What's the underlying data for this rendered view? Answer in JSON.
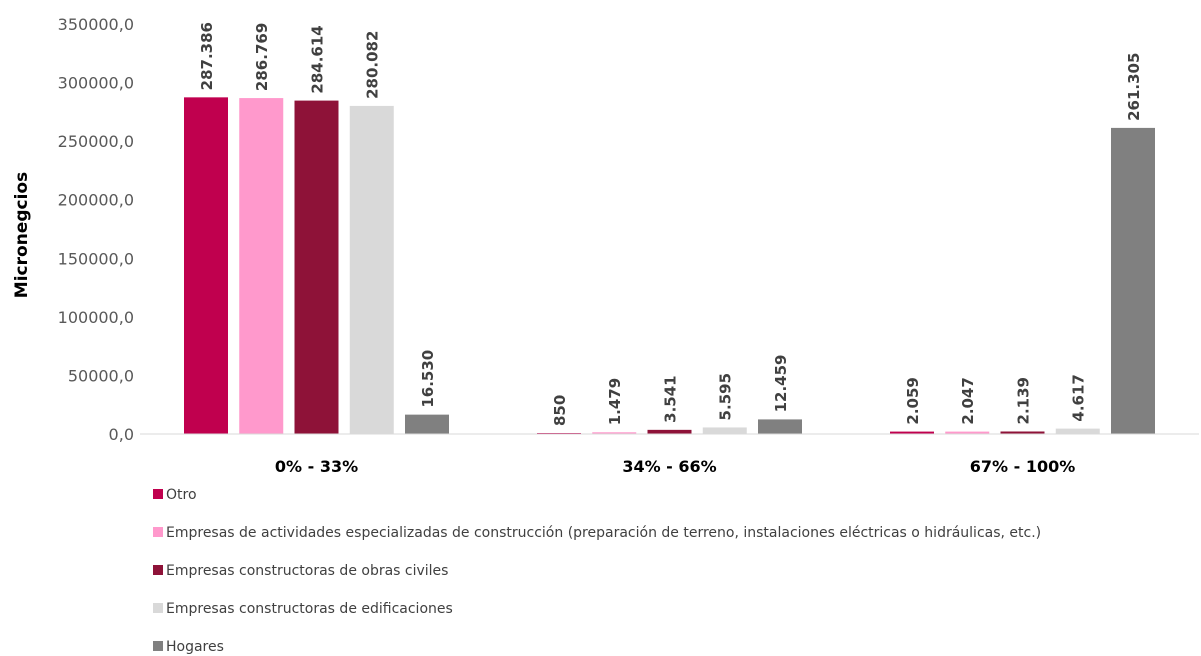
{
  "chart_data": {
    "type": "bar",
    "title": "",
    "xlabel": "",
    "ylabel": "Micronegcios",
    "ylim": [
      0,
      350000
    ],
    "yticks": [
      "0,0",
      "50000,0",
      "100000,0",
      "150000,0",
      "200000,0",
      "250000,0",
      "300000,0",
      "350000,0"
    ],
    "ytick_values": [
      0,
      50000,
      100000,
      150000,
      200000,
      250000,
      300000,
      350000
    ],
    "grid": false,
    "legend_position": "bottom-left",
    "categories": [
      "0% - 33%",
      "34%  - 66%",
      "67%  - 100%"
    ],
    "series": [
      {
        "name": "Otro",
        "color": "#C0004E",
        "values": [
          287386,
          850,
          2059
        ],
        "labels": [
          "287.386",
          "850",
          "2.059"
        ]
      },
      {
        "name": "Empresas de actividades especializadas de construcción (preparación de terreno, instalaciones eléctricas o hidráulicas, etc.)",
        "color": "#FF99CC",
        "values": [
          286769,
          1479,
          2047
        ],
        "labels": [
          "286.769",
          "1.479",
          "2.047"
        ]
      },
      {
        "name": "Empresas constructoras de obras civiles",
        "color": "#8E1238",
        "values": [
          284614,
          3541,
          2139
        ],
        "labels": [
          "284.614",
          "3.541",
          "2.139"
        ]
      },
      {
        "name": "Empresas constructoras de edificaciones",
        "color": "#D9D9D9",
        "values": [
          280082,
          5595,
          4617
        ],
        "labels": [
          "280.082",
          "5.595",
          "4.617"
        ]
      },
      {
        "name": "Hogares",
        "color": "#808080",
        "values": [
          16530,
          12459,
          261305
        ],
        "labels": [
          "16.530",
          "12.459",
          "261.305"
        ]
      }
    ]
  }
}
